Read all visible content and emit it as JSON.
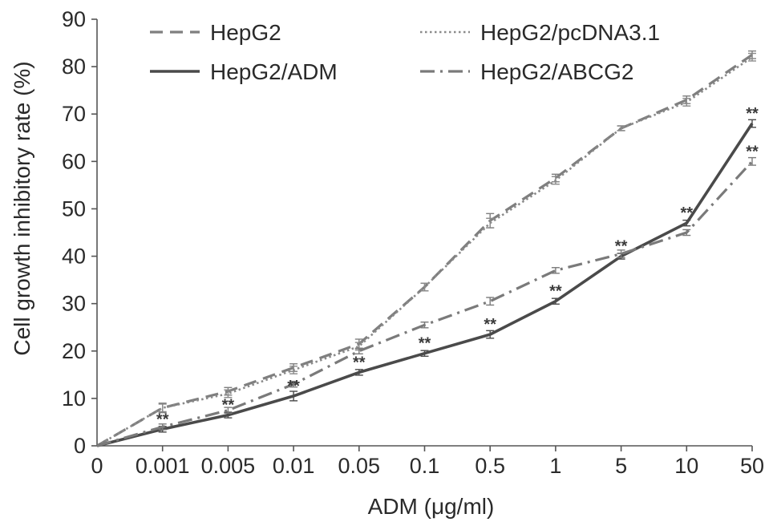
{
  "chart_data": {
    "type": "line",
    "title": "",
    "xlabel": "ADM (μg/ml)",
    "ylabel": "Cell growth inhibitory rate (%)",
    "categories": [
      "0",
      "0.001",
      "0.005",
      "0.01",
      "0.05",
      "0.1",
      "0.5",
      "1",
      "5",
      "10",
      "50"
    ],
    "ylim": [
      0,
      90
    ],
    "yticks": [
      "0",
      "10",
      "20",
      "30",
      "40",
      "50",
      "60",
      "70",
      "80",
      "90"
    ],
    "grid": false,
    "legend_position": "top",
    "series": [
      {
        "name": "HepG2",
        "values": [
          0,
          8,
          11.5,
          16.5,
          21.5,
          33.5,
          47.5,
          56.5,
          67,
          73,
          82.5
        ],
        "errors": [
          0,
          1,
          0.8,
          0.8,
          1,
          0.8,
          1.5,
          0.8,
          0.5,
          0.8,
          0.8
        ],
        "stars": [
          "",
          "",
          "",
          "",
          "",
          "",
          "",
          "",
          "",
          "",
          ""
        ],
        "style": "dash",
        "color": "#7f7f7f"
      },
      {
        "name": "HepG2/pcDNA3.1",
        "values": [
          0,
          8,
          11,
          16,
          21,
          33.5,
          47,
          56,
          67,
          72.5,
          82
        ],
        "errors": [
          0,
          0.8,
          0.8,
          0.8,
          0.8,
          0.8,
          1,
          0.8,
          0.5,
          0.8,
          0.8
        ],
        "stars": [
          "",
          "",
          "",
          "",
          "",
          "",
          "",
          "",
          "",
          "",
          ""
        ],
        "style": "dot",
        "color": "#8a8a8a"
      },
      {
        "name": "HepG2/ADM",
        "values": [
          0,
          3.5,
          6.5,
          10.5,
          15.5,
          19.5,
          23.5,
          30.5,
          40,
          47,
          68
        ],
        "errors": [
          0,
          0.6,
          0.6,
          1,
          0.6,
          0.6,
          0.8,
          0.6,
          0.6,
          0.6,
          0.8
        ],
        "stars": [
          "",
          "**",
          "**",
          "**",
          "**",
          "**",
          "**",
          "**",
          "**",
          "**",
          "**"
        ],
        "style": "solid",
        "color": "#4a4a4a"
      },
      {
        "name": "HepG2/ABCG2",
        "values": [
          0,
          4,
          7.5,
          13,
          20,
          25.5,
          30.5,
          37,
          40.5,
          45,
          60
        ],
        "errors": [
          0,
          0.6,
          0.6,
          0.6,
          0.6,
          0.6,
          0.8,
          0.6,
          0.8,
          0.6,
          0.8
        ],
        "stars": [
          "",
          "",
          "",
          "",
          "",
          "",
          "",
          "",
          "",
          "",
          "**"
        ],
        "style": "dashdot",
        "color": "#7a7a7a"
      }
    ]
  }
}
